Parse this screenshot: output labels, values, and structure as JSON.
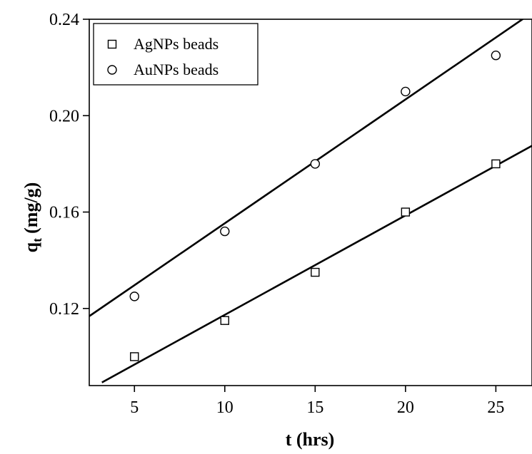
{
  "chart_data": {
    "type": "scatter",
    "title": "",
    "xlabel": "t (hrs)",
    "ylabel_main": "q",
    "ylabel_sub": "t",
    "ylabel_unit": "(mg/g)",
    "xlim": [
      2.5,
      27
    ],
    "ylim": [
      0.088,
      0.24
    ],
    "xticks": [
      5,
      10,
      15,
      20,
      25
    ],
    "xtick_labels": [
      "5",
      "10",
      "15",
      "20",
      "25"
    ],
    "yticks": [
      0.12,
      0.16,
      0.2,
      0.24
    ],
    "ytick_labels": [
      "0.12",
      "0.16",
      "0.20",
      "0.24"
    ],
    "grid": false,
    "legend_position": "top-left",
    "series": [
      {
        "name": "AgNPs beads",
        "marker": "square",
        "x": [
          5,
          10,
          15,
          20,
          25
        ],
        "y": [
          0.1,
          0.115,
          0.135,
          0.16,
          0.18
        ],
        "fit_line": {
          "x": [
            3.2,
            27
          ],
          "y": [
            0.0893,
            0.1875
          ]
        }
      },
      {
        "name": "AuNPs beads",
        "marker": "circle",
        "x": [
          5,
          10,
          15,
          20,
          25
        ],
        "y": [
          0.125,
          0.152,
          0.18,
          0.21,
          0.225
        ],
        "fit_line": {
          "x": [
            2.5,
            27
          ],
          "y": [
            0.1168,
            0.2427
          ]
        }
      }
    ],
    "colors": {
      "marks": "#000000",
      "background": "#ffffff"
    }
  }
}
